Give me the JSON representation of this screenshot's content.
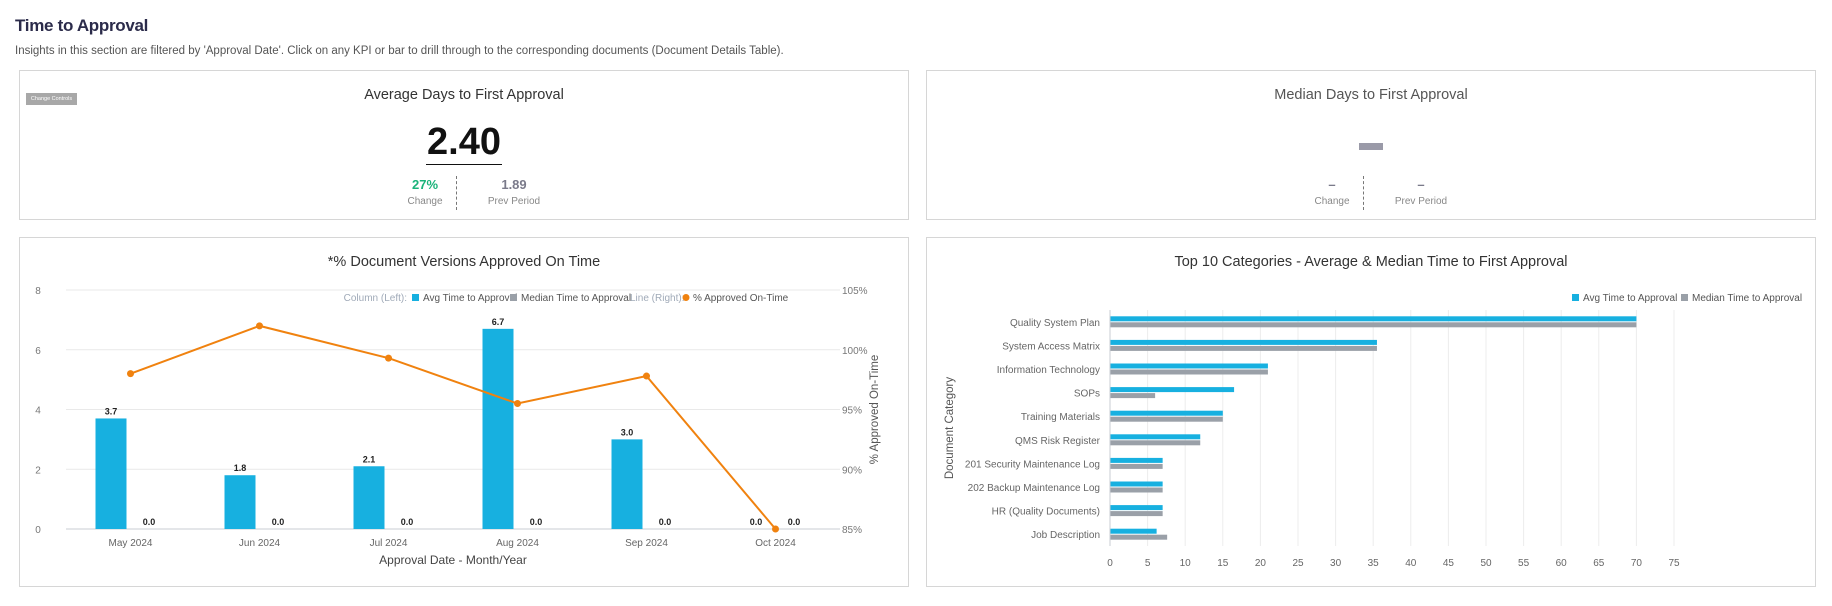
{
  "section": {
    "title": "Time to Approval",
    "description": "Insights in this section are filtered by 'Approval Date'. Click on any KPI or bar to drill through to the corresponding documents (Document Details Table)."
  },
  "kpi_avg": {
    "title": "Average Days to First Approval",
    "change_controls_label": "Change Controls",
    "value": "2.40",
    "change_value": "27%",
    "change_label": "Change",
    "prev_value": "1.89",
    "prev_label": "Prev Period",
    "change_color": "#1bb37a"
  },
  "kpi_median": {
    "title": "Median Days to First Approval",
    "change_value": "–",
    "change_label": "Change",
    "prev_value": "–",
    "prev_label": "Prev Period"
  },
  "colors": {
    "avg": "#17b0e0",
    "median": "#9aa0a8",
    "line": "#f0820f"
  },
  "chart_data": [
    {
      "type": "bar",
      "title": "*% Document Versions Approved On Time",
      "legend": {
        "column_label": "Column (Left):",
        "line_label": "Line (Right):",
        "position": "top-right"
      },
      "xlabel": "Approval Date - Month/Year",
      "ylabel_right": "% Approved On-Time",
      "categories": [
        "May 2024",
        "Jun 2024",
        "Jul 2024",
        "Aug 2024",
        "Sep 2024",
        "Oct 2024"
      ],
      "ylim": [
        0,
        8
      ],
      "yticks": [
        "0",
        "2",
        "4",
        "6",
        "8"
      ],
      "y2lim": [
        85,
        105
      ],
      "y2ticks": [
        "85%",
        "90%",
        "95%",
        "100%",
        "105%"
      ],
      "series": [
        {
          "name": "Avg Time to Approval",
          "type": "bar",
          "values": [
            3.7,
            1.8,
            2.1,
            6.7,
            3.0,
            0.0
          ],
          "labels": [
            "3.7",
            "1.8",
            "2.1",
            "6.7",
            "3.0",
            "0.0"
          ]
        },
        {
          "name": "Median Time to Approval",
          "type": "bar",
          "values": [
            0,
            0,
            0,
            0,
            0,
            0
          ],
          "labels": [
            "0.0",
            "0.0",
            "0.0",
            "0.0",
            "0.0",
            "0.0"
          ]
        },
        {
          "name": "% Approved On-Time",
          "type": "line",
          "values": [
            98.0,
            102.0,
            99.3,
            95.5,
            97.8,
            85.0
          ]
        }
      ],
      "grid": true
    },
    {
      "type": "bar",
      "orientation": "horizontal",
      "title": "Top 10 Categories - Average & Median Time to First Approval",
      "ylabel": "Document Category",
      "legend": {
        "position": "top-right"
      },
      "categories": [
        "Quality System Plan",
        "System Access Matrix",
        "Information Technology",
        "SOPs",
        "Training Materials",
        "QMS Risk Register",
        "201 Security Maintenance Log",
        "202 Backup Maintenance Log",
        "HR (Quality Documents)",
        "Job Description"
      ],
      "xlim": [
        0,
        75
      ],
      "xticks": [
        "0",
        "5",
        "10",
        "15",
        "20",
        "25",
        "30",
        "35",
        "40",
        "45",
        "50",
        "55",
        "60",
        "65",
        "70",
        "75"
      ],
      "series": [
        {
          "name": "Avg Time to Approval",
          "values": [
            70,
            35.5,
            21,
            16.5,
            15,
            12,
            7,
            7,
            7,
            6.2
          ]
        },
        {
          "name": "Median Time to Approval",
          "values": [
            70,
            35.5,
            21,
            6,
            15,
            12,
            7,
            7,
            7,
            7.6
          ]
        }
      ],
      "grid": true
    }
  ]
}
